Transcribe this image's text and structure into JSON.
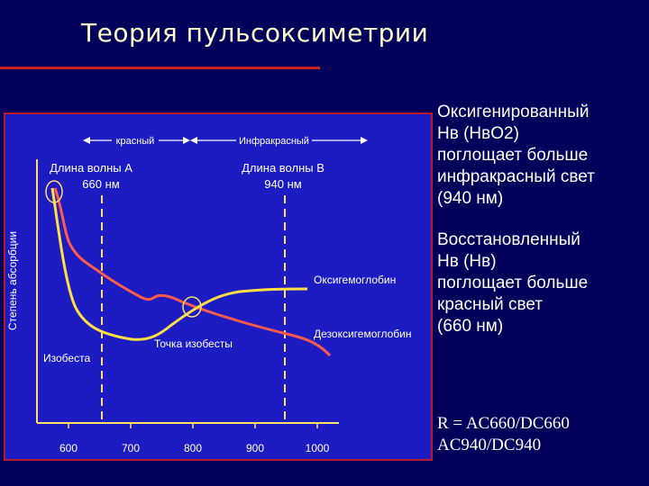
{
  "title": "Теория пульсоксиметрии",
  "colors": {
    "background": "#00005a",
    "panel": "#1c1cc2",
    "accent_red": "#cc2222",
    "oxy_curve": "#ffdd44",
    "deoxy_curve": "#ff5a4a"
  },
  "diagram": {
    "y_axis_label": "Степень абсорбции",
    "band_red": "красный",
    "band_ir": "Инфракрасный",
    "wavelength_a": {
      "line1": "Длина волны А",
      "line2": "660 нм"
    },
    "wavelength_b": {
      "line1": "Длина волны В",
      "line2": "940 нм"
    },
    "curve_oxy": "Оксигемоглобин",
    "curve_deoxy": "Дезоксигемоглобин",
    "isosbestic_point": "Точка изобесты",
    "isosbestic_left": "Изобеста",
    "x_ticks": [
      "600",
      "700",
      "800",
      "900",
      "1000"
    ]
  },
  "bullets": [
    {
      "lines": [
        "Оксигенированный",
        "Нв (НвО2)",
        "поглощает больше",
        "инфракрасный свет",
        "(940 нм)"
      ]
    },
    {
      "lines": [
        "Восстановленный",
        "Нв (Нв)",
        "поглощает больше",
        "красный свет",
        "(660 нм)"
      ]
    }
  ],
  "formula": {
    "line1": "R = AC660/DC660",
    "line2": "AC940/DC940"
  }
}
